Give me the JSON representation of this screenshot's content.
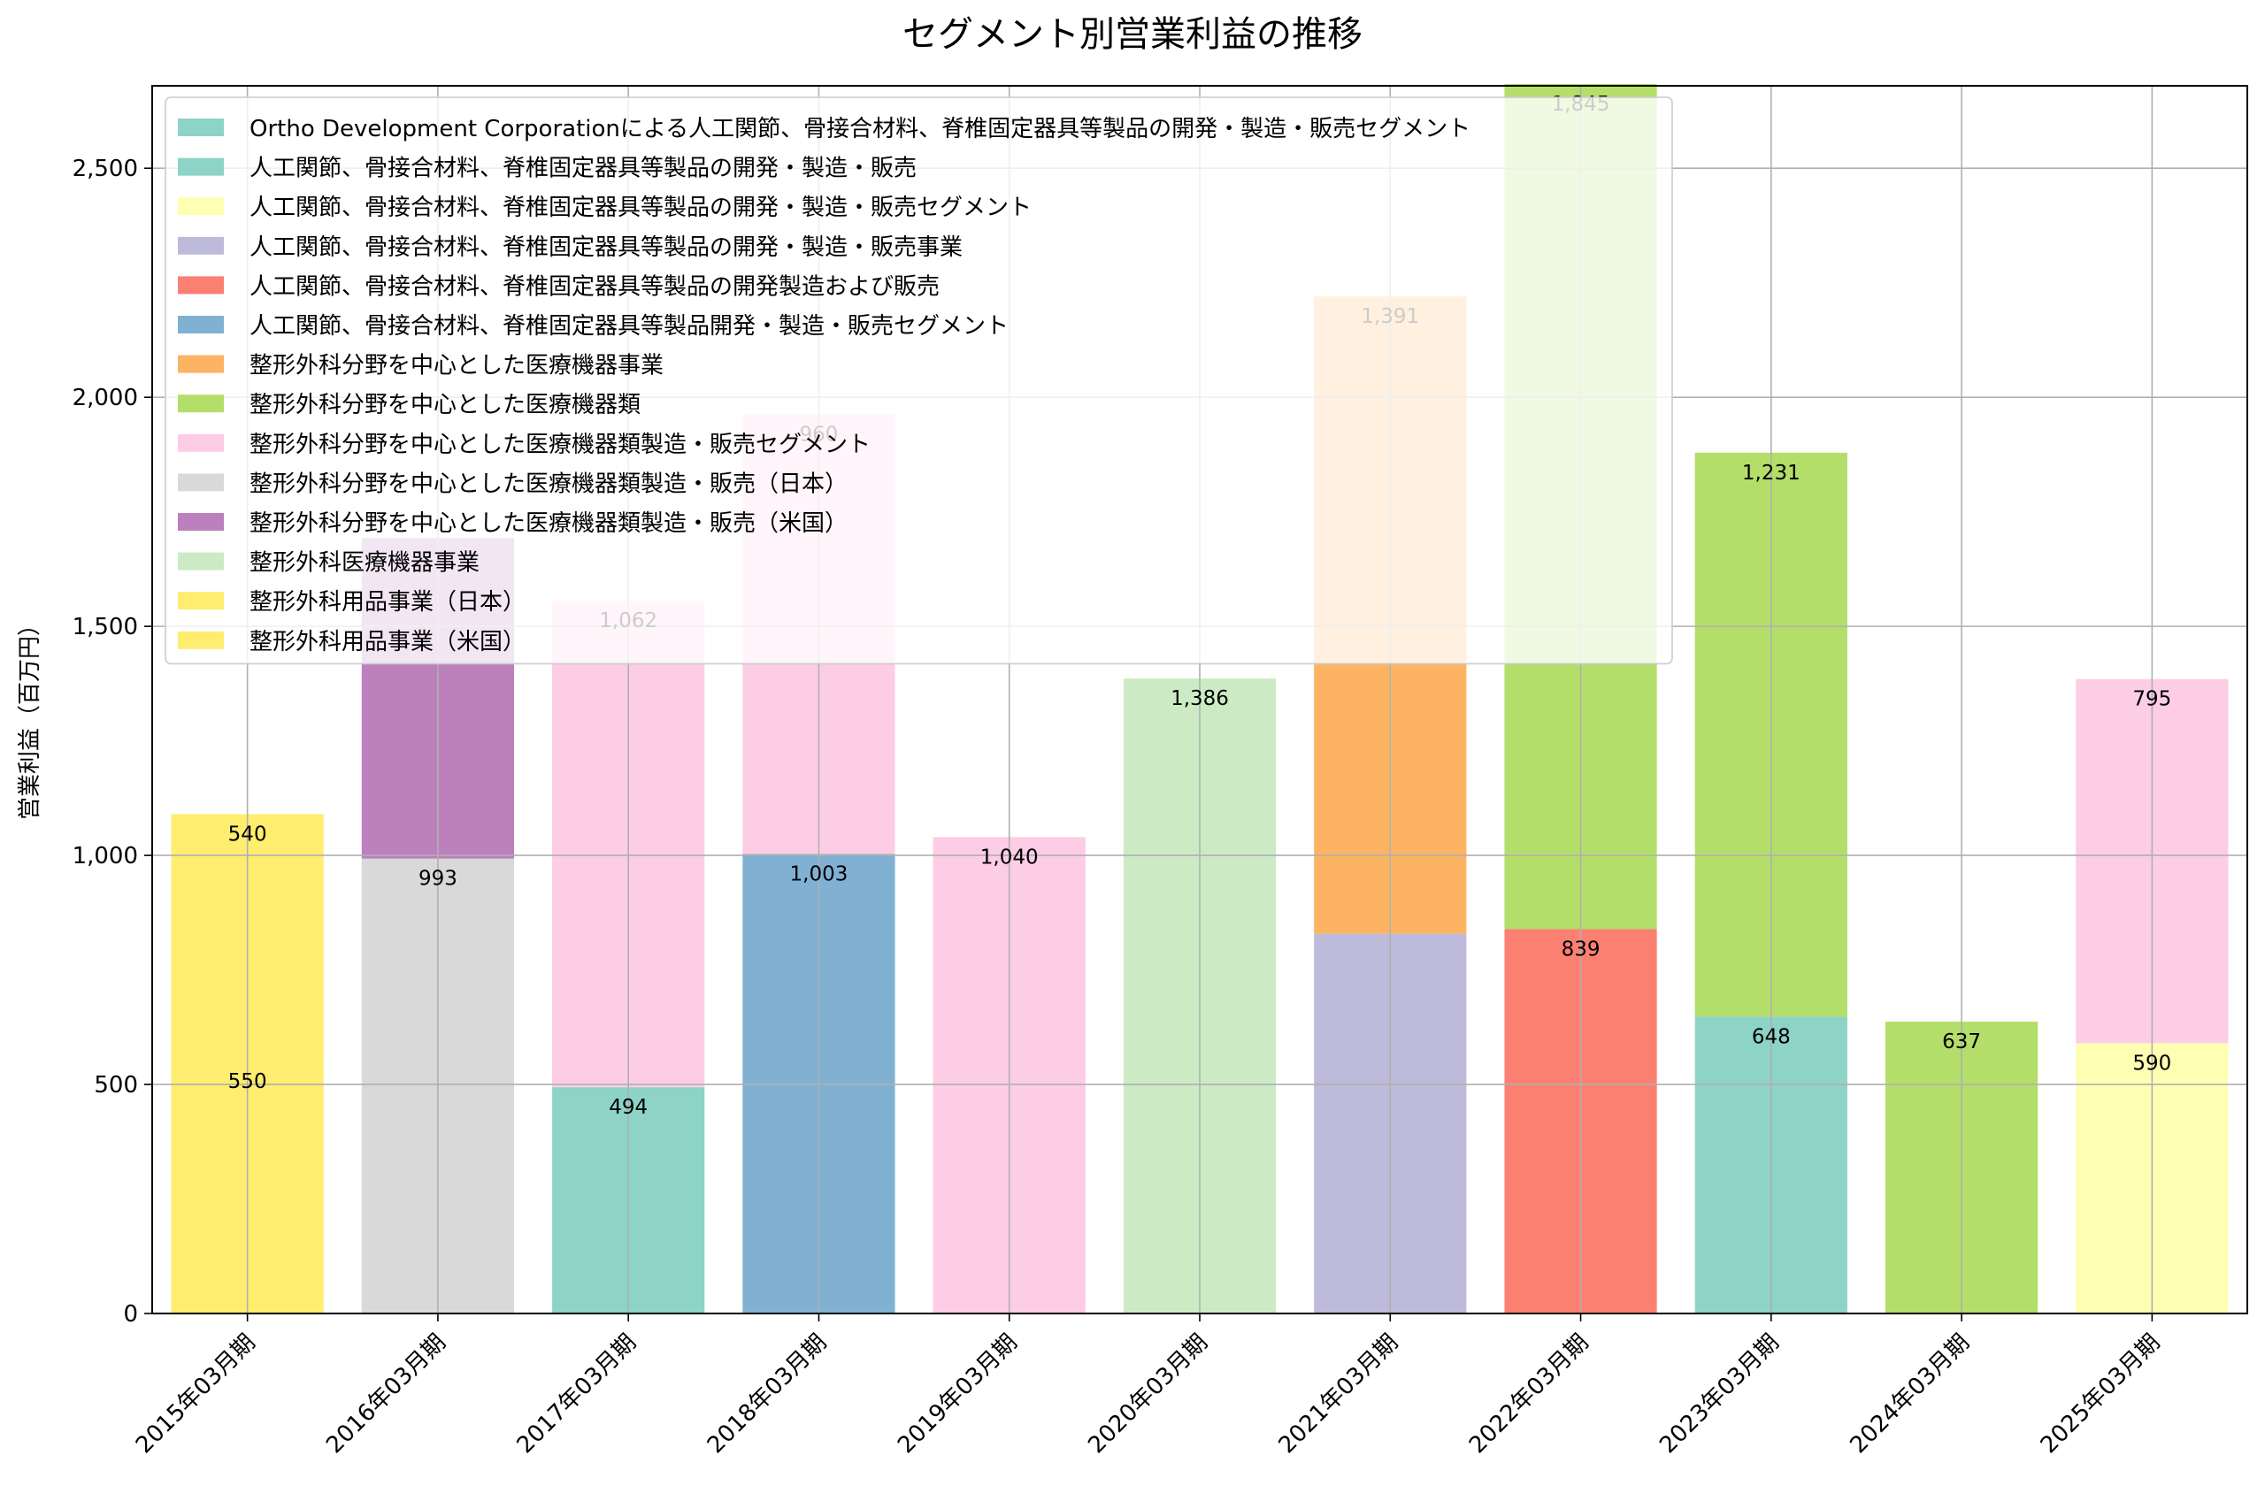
{
  "chart_data": {
    "type": "bar",
    "stacked": true,
    "title": "セグメント別営業利益の推移",
    "xlabel": "",
    "ylabel": "営業利益（百万円）",
    "ylim": [
      0,
      2680
    ],
    "yticks": [
      0,
      500,
      1000,
      1500,
      2000,
      2500
    ],
    "ytick_labels": [
      "0",
      "500",
      "1,000",
      "1,500",
      "2,000",
      "2,500"
    ],
    "grid": true,
    "legend_position": "top-left",
    "categories": [
      "2015年03月期",
      "2016年03月期",
      "2017年03月期",
      "2018年03月期",
      "2019年03月期",
      "2020年03月期",
      "2021年03月期",
      "2022年03月期",
      "2023年03月期",
      "2024年03月期",
      "2025年03月期"
    ],
    "series": [
      {
        "name": "Ortho Development Corporationによる人工関節、骨接合材料、脊椎固定器具等製品の開発・製造・販売セグメント",
        "color": "#8dd3c7",
        "values": [
          null,
          null,
          null,
          null,
          null,
          null,
          null,
          null,
          null,
          null,
          null
        ]
      },
      {
        "name": "人工関節、骨接合材料、脊椎固定器具等製品の開発・製造・販売",
        "color": "#8dd3c7",
        "values": [
          null,
          null,
          494,
          null,
          null,
          null,
          null,
          null,
          648,
          null,
          null
        ]
      },
      {
        "name": "人工関節、骨接合材料、脊椎固定器具等製品の開発・製造・販売セグメント",
        "color": "#ffffb3",
        "values": [
          null,
          null,
          null,
          null,
          null,
          null,
          null,
          null,
          null,
          null,
          590
        ]
      },
      {
        "name": "人工関節、骨接合材料、脊椎固定器具等製品の開発・製造・販売事業",
        "color": "#bebada",
        "values": [
          null,
          null,
          null,
          null,
          null,
          null,
          829,
          null,
          null,
          null,
          null
        ]
      },
      {
        "name": "人工関節、骨接合材料、脊椎固定器具等製品の開発製造および販売",
        "color": "#fb8072",
        "values": [
          null,
          null,
          null,
          null,
          null,
          null,
          null,
          839,
          null,
          null,
          null
        ]
      },
      {
        "name": "人工関節、骨接合材料、脊椎固定器具等製品開発・製造・販売セグメント",
        "color": "#80b1d3",
        "values": [
          null,
          null,
          null,
          1003,
          null,
          null,
          null,
          null,
          null,
          null,
          null
        ]
      },
      {
        "name": "整形外科分野を中心とした医療機器事業",
        "color": "#fdb462",
        "values": [
          null,
          null,
          null,
          null,
          null,
          null,
          1391,
          null,
          null,
          null,
          null
        ]
      },
      {
        "name": "整形外科分野を中心とした医療機器類",
        "color": "#b3de69",
        "values": [
          null,
          null,
          null,
          null,
          null,
          null,
          null,
          1845,
          1231,
          637,
          null
        ]
      },
      {
        "name": "整形外科分野を中心とした医療機器類製造・販売セグメント",
        "color": "#fccde5",
        "values": [
          null,
          null,
          1062,
          960,
          1040,
          null,
          null,
          null,
          null,
          null,
          795
        ]
      },
      {
        "name": "整形外科分野を中心とした医療機器類製造・販売（日本）",
        "color": "#d9d9d9",
        "values": [
          null,
          993,
          null,
          null,
          null,
          null,
          null,
          null,
          null,
          null,
          null
        ]
      },
      {
        "name": "整形外科分野を中心とした医療機器類製造・販売（米国）",
        "color": "#bc80bd",
        "values": [
          null,
          700,
          null,
          null,
          null,
          null,
          null,
          null,
          null,
          null,
          null
        ]
      },
      {
        "name": "整形外科医療機器事業",
        "color": "#ccebc5",
        "values": [
          null,
          null,
          null,
          null,
          null,
          1386,
          null,
          null,
          null,
          null,
          null
        ]
      },
      {
        "name": "整形外科用品事業（日本）",
        "color": "#ffed6f",
        "values": [
          550,
          null,
          null,
          null,
          null,
          null,
          null,
          null,
          null,
          null,
          null
        ]
      },
      {
        "name": "整形外科用品事業（米国）",
        "color": "#ffed6f",
        "values": [
          540,
          null,
          null,
          null,
          null,
          null,
          null,
          null,
          null,
          null,
          null
        ]
      }
    ],
    "data_label_series": [
      [
        12,
        13
      ],
      [
        9
      ],
      [
        1,
        8
      ],
      [
        5,
        8
      ],
      [
        8
      ],
      [
        11
      ],
      [
        6
      ],
      [
        4,
        7
      ],
      [
        1,
        7
      ],
      [
        7
      ],
      [
        2,
        8
      ]
    ],
    "data_labels": [
      [
        "550",
        "540"
      ],
      [
        "993"
      ],
      [
        "494",
        "1,062"
      ],
      [
        "1,003",
        "960"
      ],
      [
        "1,040"
      ],
      [
        "1,386"
      ],
      [
        "1,391"
      ],
      [
        "839",
        "1,845"
      ],
      [
        "648",
        "1,231"
      ],
      [
        "637"
      ],
      [
        "590",
        "795"
      ]
    ]
  }
}
